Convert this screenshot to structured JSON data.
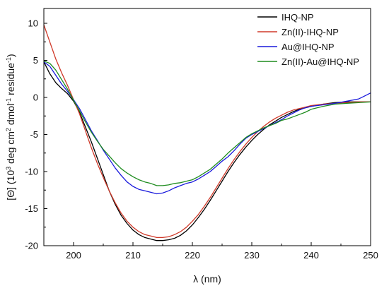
{
  "chart_data": {
    "type": "line",
    "xlabel": "λ (nm)",
    "ylabel_parts": [
      "[Θ] (10",
      "3",
      " deg cm",
      "2",
      " dmol",
      "-1",
      " residue",
      "-1",
      ")"
    ],
    "xlim": [
      195,
      250
    ],
    "ylim": [
      -20,
      12
    ],
    "x_ticks": [
      200,
      210,
      220,
      230,
      240,
      250
    ],
    "y_ticks": [
      -20,
      -15,
      -10,
      -5,
      0,
      5,
      10
    ],
    "legend_position": "top-right",
    "grid": false,
    "series": [
      {
        "name": "IHQ-NP",
        "color": "#000000",
        "points": [
          [
            195,
            4.8
          ],
          [
            196,
            3.2
          ],
          [
            197,
            2.0
          ],
          [
            198,
            1.2
          ],
          [
            199,
            0.5
          ],
          [
            200,
            -0.5
          ],
          [
            201,
            -2.0
          ],
          [
            202,
            -4.0
          ],
          [
            203,
            -6.0
          ],
          [
            204,
            -8.2
          ],
          [
            205,
            -10.4
          ],
          [
            206,
            -12.6
          ],
          [
            207,
            -14.4
          ],
          [
            208,
            -15.9
          ],
          [
            209,
            -17.0
          ],
          [
            210,
            -17.9
          ],
          [
            211,
            -18.5
          ],
          [
            212,
            -18.9
          ],
          [
            213,
            -19.1
          ],
          [
            214,
            -19.3
          ],
          [
            215,
            -19.3
          ],
          [
            216,
            -19.2
          ],
          [
            217,
            -19.0
          ],
          [
            218,
            -18.6
          ],
          [
            219,
            -18.0
          ],
          [
            220,
            -17.2
          ],
          [
            221,
            -16.2
          ],
          [
            222,
            -15.1
          ],
          [
            223,
            -13.9
          ],
          [
            224,
            -12.6
          ],
          [
            225,
            -11.3
          ],
          [
            226,
            -10.0
          ],
          [
            227,
            -8.8
          ],
          [
            228,
            -7.7
          ],
          [
            229,
            -6.7
          ],
          [
            230,
            -5.8
          ],
          [
            231,
            -5.0
          ],
          [
            232,
            -4.3
          ],
          [
            233,
            -3.7
          ],
          [
            234,
            -3.2
          ],
          [
            235,
            -2.7
          ],
          [
            236,
            -2.3
          ],
          [
            237,
            -1.9
          ],
          [
            238,
            -1.6
          ],
          [
            239,
            -1.4
          ],
          [
            240,
            -1.2
          ],
          [
            242,
            -0.9
          ],
          [
            244,
            -0.7
          ],
          [
            246,
            -0.6
          ],
          [
            248,
            -0.6
          ],
          [
            250,
            -0.6
          ]
        ]
      },
      {
        "name": "Zn(II)-IHQ-NP",
        "color": "#d03a2a",
        "points": [
          [
            195,
            9.8
          ],
          [
            196,
            7.5
          ],
          [
            197,
            5.2
          ],
          [
            198,
            3.3
          ],
          [
            199,
            1.6
          ],
          [
            200,
            -0.3
          ],
          [
            201,
            -2.2
          ],
          [
            202,
            -4.5
          ],
          [
            203,
            -6.8
          ],
          [
            204,
            -8.9
          ],
          [
            205,
            -10.8
          ],
          [
            206,
            -12.6
          ],
          [
            207,
            -14.2
          ],
          [
            208,
            -15.6
          ],
          [
            209,
            -16.7
          ],
          [
            210,
            -17.5
          ],
          [
            211,
            -18.1
          ],
          [
            212,
            -18.5
          ],
          [
            213,
            -18.7
          ],
          [
            214,
            -18.9
          ],
          [
            215,
            -18.9
          ],
          [
            216,
            -18.8
          ],
          [
            217,
            -18.5
          ],
          [
            218,
            -18.1
          ],
          [
            219,
            -17.5
          ],
          [
            220,
            -16.7
          ],
          [
            221,
            -15.8
          ],
          [
            222,
            -14.7
          ],
          [
            223,
            -13.5
          ],
          [
            224,
            -12.2
          ],
          [
            225,
            -10.9
          ],
          [
            226,
            -9.6
          ],
          [
            227,
            -8.4
          ],
          [
            228,
            -7.3
          ],
          [
            229,
            -6.3
          ],
          [
            230,
            -5.4
          ],
          [
            231,
            -4.6
          ],
          [
            232,
            -3.9
          ],
          [
            233,
            -3.3
          ],
          [
            234,
            -2.8
          ],
          [
            235,
            -2.4
          ],
          [
            236,
            -2.0
          ],
          [
            237,
            -1.7
          ],
          [
            238,
            -1.5
          ],
          [
            239,
            -1.3
          ],
          [
            240,
            -1.1
          ],
          [
            242,
            -0.9
          ],
          [
            244,
            -0.8
          ],
          [
            246,
            -0.7
          ],
          [
            248,
            -0.6
          ],
          [
            250,
            -0.6
          ]
        ]
      },
      {
        "name": "Au@IHQ-NP",
        "color": "#1a1adc",
        "points": [
          [
            195,
            4.8
          ],
          [
            196,
            4.2
          ],
          [
            197,
            3.0
          ],
          [
            198,
            1.8
          ],
          [
            199,
            0.8
          ],
          [
            200,
            -0.3
          ],
          [
            201,
            -1.5
          ],
          [
            202,
            -3.0
          ],
          [
            203,
            -4.5
          ],
          [
            204,
            -5.8
          ],
          [
            205,
            -7.1
          ],
          [
            206,
            -8.3
          ],
          [
            207,
            -9.5
          ],
          [
            208,
            -10.5
          ],
          [
            209,
            -11.4
          ],
          [
            210,
            -12.0
          ],
          [
            211,
            -12.4
          ],
          [
            212,
            -12.6
          ],
          [
            213,
            -12.8
          ],
          [
            214,
            -13.0
          ],
          [
            215,
            -12.9
          ],
          [
            216,
            -12.6
          ],
          [
            217,
            -12.2
          ],
          [
            218,
            -11.9
          ],
          [
            219,
            -11.6
          ],
          [
            220,
            -11.4
          ],
          [
            221,
            -11.0
          ],
          [
            222,
            -10.5
          ],
          [
            223,
            -10.0
          ],
          [
            224,
            -9.3
          ],
          [
            225,
            -8.6
          ],
          [
            226,
            -8.0
          ],
          [
            227,
            -7.2
          ],
          [
            228,
            -6.3
          ],
          [
            229,
            -5.5
          ],
          [
            230,
            -5.0
          ],
          [
            231,
            -4.6
          ],
          [
            232,
            -4.2
          ],
          [
            233,
            -3.8
          ],
          [
            234,
            -3.4
          ],
          [
            235,
            -3.0
          ],
          [
            236,
            -2.5
          ],
          [
            237,
            -2.1
          ],
          [
            238,
            -1.7
          ],
          [
            239,
            -1.4
          ],
          [
            240,
            -1.2
          ],
          [
            242,
            -1.0
          ],
          [
            244,
            -0.8
          ],
          [
            246,
            -0.5
          ],
          [
            248,
            -0.2
          ],
          [
            249,
            0.2
          ],
          [
            250,
            0.6
          ]
        ]
      },
      {
        "name": "Zn(II)-Au@IHQ-NP",
        "color": "#1e8c1e",
        "points": [
          [
            195,
            4.9
          ],
          [
            196,
            4.6
          ],
          [
            197,
            3.7
          ],
          [
            198,
            2.4
          ],
          [
            199,
            1.1
          ],
          [
            200,
            -0.4
          ],
          [
            201,
            -1.8
          ],
          [
            202,
            -3.3
          ],
          [
            203,
            -4.7
          ],
          [
            204,
            -5.9
          ],
          [
            205,
            -7.0
          ],
          [
            206,
            -7.9
          ],
          [
            207,
            -8.8
          ],
          [
            208,
            -9.6
          ],
          [
            209,
            -10.2
          ],
          [
            210,
            -10.7
          ],
          [
            211,
            -11.1
          ],
          [
            212,
            -11.4
          ],
          [
            213,
            -11.6
          ],
          [
            214,
            -11.9
          ],
          [
            215,
            -11.9
          ],
          [
            216,
            -11.8
          ],
          [
            217,
            -11.6
          ],
          [
            218,
            -11.5
          ],
          [
            219,
            -11.3
          ],
          [
            220,
            -11.1
          ],
          [
            221,
            -10.7
          ],
          [
            222,
            -10.2
          ],
          [
            223,
            -9.7
          ],
          [
            224,
            -9.0
          ],
          [
            225,
            -8.3
          ],
          [
            226,
            -7.5
          ],
          [
            227,
            -6.8
          ],
          [
            228,
            -6.1
          ],
          [
            229,
            -5.4
          ],
          [
            230,
            -4.9
          ],
          [
            231,
            -4.5
          ],
          [
            232,
            -4.1
          ],
          [
            233,
            -3.8
          ],
          [
            234,
            -3.5
          ],
          [
            235,
            -3.1
          ],
          [
            236,
            -2.9
          ],
          [
            237,
            -2.6
          ],
          [
            238,
            -2.3
          ],
          [
            239,
            -2.0
          ],
          [
            240,
            -1.6
          ],
          [
            242,
            -1.2
          ],
          [
            244,
            -0.9
          ],
          [
            246,
            -0.8
          ],
          [
            248,
            -0.7
          ],
          [
            250,
            -0.6
          ]
        ]
      }
    ]
  }
}
